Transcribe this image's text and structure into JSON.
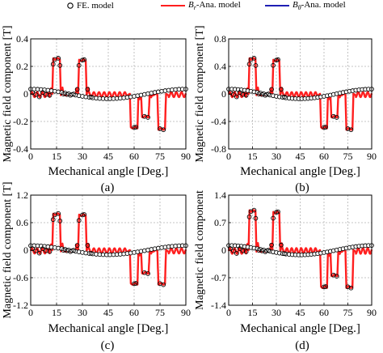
{
  "legend": {
    "fe": "FE. model",
    "br_sym": "B",
    "br_sub": "r",
    "br_rest": "-Ana. model",
    "bt_sym": "B",
    "bt_sub": "θ",
    "bt_rest": "-Ana. model"
  },
  "colors": {
    "br": "#ff1f1f",
    "bt": "#1f1fb4",
    "marker": "#000000",
    "grid": "#b4b4b4"
  },
  "chart_data": [
    {
      "type": "line",
      "caption": "(a)",
      "xlabel": "Mechanical angle  [Deg.]",
      "ylabel": "Magnetic field component  [T]",
      "xlim": [
        0,
        90
      ],
      "ylim": [
        -0.4,
        0.4
      ],
      "xticks": [
        0,
        15,
        30,
        45,
        60,
        75,
        90
      ],
      "yticks": [
        -0.4,
        -0.2,
        0,
        0.2,
        0.4
      ],
      "ytick_labels": [
        "-0.4",
        "-0.2",
        "0",
        "0.2",
        "0.4"
      ],
      "grid": true,
      "br_peaks": {
        "pos": [
          0.26,
          0.25
        ],
        "neg": [
          -0.24,
          -0.16,
          -0.25
        ]
      },
      "br_offset": -0.005,
      "bt_amp": 0.035,
      "series": [
        {
          "name": "FE. model",
          "style": "markers"
        },
        {
          "name": "Br-Ana. model",
          "style": "line"
        },
        {
          "name": "Bθ-Ana. model",
          "style": "line"
        }
      ]
    },
    {
      "type": "line",
      "caption": "(b)",
      "xlabel": "Mechanical angle  [Deg.]",
      "ylabel": "Magnetic field component  [T]",
      "xlim": [
        0,
        90
      ],
      "ylim": [
        -0.8,
        0.8
      ],
      "xticks": [
        0,
        15,
        30,
        45,
        60,
        75,
        90
      ],
      "yticks": [
        -0.8,
        -0.4,
        0,
        0.4,
        0.8
      ],
      "ytick_labels": [
        "-0.8",
        "-0.4",
        "0",
        "0.4",
        "0.8"
      ],
      "grid": true,
      "br_peaks": {
        "pos": [
          0.52,
          0.5
        ],
        "neg": [
          -0.48,
          -0.32,
          -0.5
        ]
      },
      "br_offset": -0.01,
      "bt_amp": 0.07,
      "series": [
        {
          "name": "FE. model",
          "style": "markers"
        },
        {
          "name": "Br-Ana. model",
          "style": "line"
        },
        {
          "name": "Bθ-Ana. model",
          "style": "line"
        }
      ]
    },
    {
      "type": "line",
      "caption": "(c)",
      "xlabel": "Mechanical angle  [Deg.]",
      "ylabel": "Magnetic field component  [T]",
      "xlim": [
        0,
        90
      ],
      "ylim": [
        -1.2,
        1.2
      ],
      "xticks": [
        0,
        15,
        30,
        45,
        60,
        75,
        90
      ],
      "yticks": [
        -1.2,
        -0.6,
        0,
        0.6,
        1.2
      ],
      "ytick_labels": [
        "-1.2",
        "-0.6",
        "0",
        "0.6",
        "1.2"
      ],
      "grid": true,
      "br_peaks": {
        "pos": [
          0.8,
          0.78
        ],
        "neg": [
          -0.72,
          -0.48,
          -0.72
        ]
      },
      "br_offset": -0.015,
      "bt_amp": 0.1,
      "series": [
        {
          "name": "FE. model",
          "style": "markers"
        },
        {
          "name": "Br-Ana. model",
          "style": "line"
        },
        {
          "name": "Bθ-Ana. model",
          "style": "line"
        }
      ]
    },
    {
      "type": "line",
      "caption": "(d)",
      "xlabel": "Mechanical angle  [Deg.]",
      "ylabel": "Magnetic field component",
      "xlim": [
        0,
        90
      ],
      "ylim": [
        -1.4,
        1.4
      ],
      "xticks": [
        0,
        15,
        30,
        45,
        60,
        75,
        90
      ],
      "yticks": [
        -1.4,
        -0.7,
        0,
        0.7,
        1.4
      ],
      "ytick_labels": [
        "-1.4",
        "-0.7",
        "0",
        "0.7",
        "1.4"
      ],
      "grid": true,
      "br_peaks": {
        "pos": [
          1.02,
          0.98
        ],
        "neg": [
          -0.92,
          -0.62,
          -0.92
        ]
      },
      "br_offset": -0.02,
      "bt_amp": 0.12,
      "series": [
        {
          "name": "FE. model",
          "style": "markers"
        },
        {
          "name": "Br-Ana. model",
          "style": "line"
        },
        {
          "name": "Bθ-Ana. model",
          "style": "line"
        }
      ]
    }
  ]
}
